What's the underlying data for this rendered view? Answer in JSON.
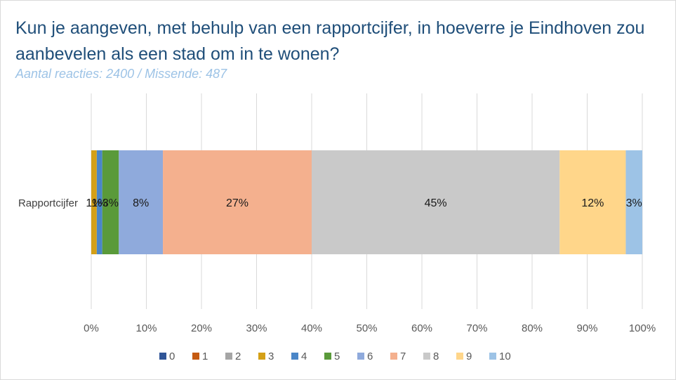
{
  "title": "Kun je aangeven, met behulp van een rapportcijfer, in hoeverre je Eindhoven zou aanbevelen als een stad om in te wonen?",
  "subtitle": "Aantal reacties: 2400 / Missende: 487",
  "chart_data": {
    "type": "bar",
    "orientation": "horizontal-stacked-100",
    "categories": [
      "Rapportcijfer"
    ],
    "series": [
      {
        "name": "0",
        "values": [
          0
        ],
        "color": "#2f5597",
        "label": ""
      },
      {
        "name": "1",
        "values": [
          0
        ],
        "color": "#c55a11",
        "label": ""
      },
      {
        "name": "2",
        "values": [
          0
        ],
        "color": "#a5a5a5",
        "label": ""
      },
      {
        "name": "3",
        "values": [
          1
        ],
        "color": "#d4a017",
        "label": "1%"
      },
      {
        "name": "4",
        "values": [
          1
        ],
        "color": "#4a86c8",
        "label": "1%"
      },
      {
        "name": "5",
        "values": [
          3
        ],
        "color": "#5a9a3a",
        "label": "3%"
      },
      {
        "name": "6",
        "values": [
          8
        ],
        "color": "#8faadc",
        "label": "8%"
      },
      {
        "name": "7",
        "values": [
          27
        ],
        "color": "#f4b08e",
        "label": "27%"
      },
      {
        "name": "8",
        "values": [
          45
        ],
        "color": "#c9c9c9",
        "label": "45%"
      },
      {
        "name": "9",
        "values": [
          12
        ],
        "color": "#ffd68a",
        "label": "12%"
      },
      {
        "name": "10",
        "values": [
          3
        ],
        "color": "#9dc3e6",
        "label": "3%"
      }
    ],
    "xlim": [
      0,
      100
    ],
    "xticks": [
      "0%",
      "10%",
      "20%",
      "30%",
      "40%",
      "50%",
      "60%",
      "70%",
      "80%",
      "90%",
      "100%"
    ],
    "grid": true,
    "legend": "bottom"
  }
}
